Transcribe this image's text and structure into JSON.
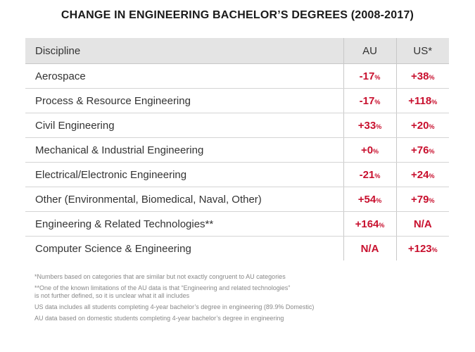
{
  "title": "CHANGE IN ENGINEERING BACHELOR’S DEGREES (2008-2017)",
  "chart_data": {
    "type": "table",
    "title": "CHANGE IN ENGINEERING BACHELOR’S DEGREES (2008-2017)",
    "columns": [
      "Discipline",
      "AU",
      "US*"
    ],
    "rows": [
      {
        "discipline": "Aerospace",
        "au": "-17",
        "au_unit": "%",
        "us": "+38",
        "us_unit": "%"
      },
      {
        "discipline": "Process & Resource Engineering",
        "au": "-17",
        "au_unit": "%",
        "us": "+118",
        "us_unit": "%"
      },
      {
        "discipline": "Civil Engineering",
        "au": "+33",
        "au_unit": "%",
        "us": "+20",
        "us_unit": "%"
      },
      {
        "discipline": "Mechanical & Industrial Engineering",
        "au": "+0",
        "au_unit": "%",
        "us": "+76",
        "us_unit": "%"
      },
      {
        "discipline": "Electrical/Electronic Engineering",
        "au": "-21",
        "au_unit": "%",
        "us": "+24",
        "us_unit": "%"
      },
      {
        "discipline": "Other (Environmental, Biomedical, Naval, Other)",
        "au": "+54",
        "au_unit": "%",
        "us": "+79",
        "us_unit": "%"
      },
      {
        "discipline": "Engineering & Related Technologies**",
        "au": "+164",
        "au_unit": "%",
        "us": "N/A",
        "us_unit": ""
      },
      {
        "discipline": "Computer Science & Engineering",
        "au": "N/A",
        "au_unit": "",
        "us": "+123",
        "us_unit": "%"
      }
    ]
  },
  "notes": [
    "*Numbers based on categories that are similar but not exactly congruent to AU categories",
    "**One of the known limitations of the AU data is that “Engineering and related technologies”",
    "is not further defined, so it is unclear what it all includes",
    "US data includes all students completing 4-year bachelor’s degree in engineering (89.9% Domestic)",
    "AU data based on domestic students completing 4-year bachelor’s degree in engineering"
  ],
  "colors": {
    "accent_red": "#c8102e",
    "header_bg": "#e4e4e4",
    "text": "#333333",
    "notes_text": "#888888"
  }
}
